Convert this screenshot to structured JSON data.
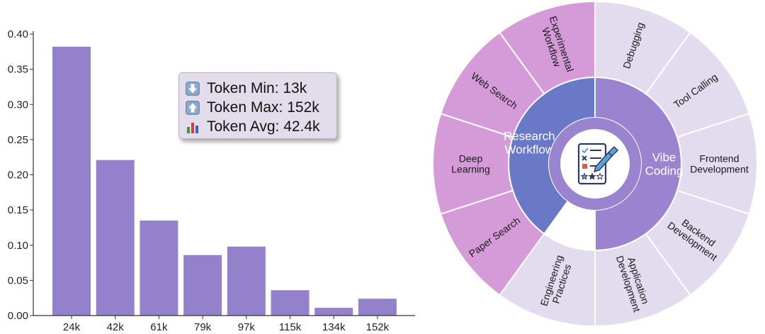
{
  "chart_data": [
    {
      "type": "bar",
      "categories": [
        "24k",
        "42k",
        "61k",
        "79k",
        "97k",
        "115k",
        "134k",
        "152k"
      ],
      "values": [
        0.382,
        0.221,
        0.135,
        0.086,
        0.098,
        0.036,
        0.011,
        0.024
      ],
      "ylim": [
        0,
        0.4
      ],
      "yticks": [
        "0.00",
        "0.05",
        "0.10",
        "0.15",
        "0.20",
        "0.25",
        "0.30",
        "0.35",
        "0.40"
      ],
      "grid": false,
      "bar_color": "#9381cb",
      "stats": [
        {
          "icon": "arrow-down-icon",
          "label": "Token Min: 13k"
        },
        {
          "icon": "arrow-up-icon",
          "label": "Token Max: 152k"
        },
        {
          "icon": "bar-chart-icon",
          "label": "Token Avg: 42.4k"
        }
      ]
    },
    {
      "type": "sunburst",
      "center_icon": "checklist-pencil-icon",
      "inner": [
        {
          "name": "Research Workflow",
          "lines": [
            "Research",
            "Workflow"
          ],
          "color": "#6a78c8",
          "share": 4
        },
        {
          "name": "Vibe Coding",
          "lines": [
            "Vibe",
            "Coding"
          ],
          "color": "#9b84cf",
          "share": 5
        }
      ],
      "outer": [
        {
          "parent": "Research Workflow",
          "lines": [
            "Paper Search"
          ],
          "color": "#d59bd9"
        },
        {
          "parent": "Research Workflow",
          "lines": [
            "Deep",
            "Learning"
          ],
          "color": "#d59bd9"
        },
        {
          "parent": "Research Workflow",
          "lines": [
            "Web Search"
          ],
          "color": "#d59bd9"
        },
        {
          "parent": "Research Workflow",
          "lines": [
            "Experimental",
            "Workflow"
          ],
          "color": "#d59bd9"
        },
        {
          "parent": "Vibe Coding",
          "lines": [
            "Debugging"
          ],
          "color": "#e3dbee"
        },
        {
          "parent": "Vibe Coding",
          "lines": [
            "Tool Calling"
          ],
          "color": "#e3dbee"
        },
        {
          "parent": "Vibe Coding",
          "lines": [
            "Frontend",
            "Development"
          ],
          "color": "#e3dbee"
        },
        {
          "parent": "Vibe Coding",
          "lines": [
            "Backend",
            "Development"
          ],
          "color": "#e3dbee"
        },
        {
          "parent": "Vibe Coding",
          "lines": [
            "Application",
            "Development"
          ],
          "color": "#e3dbee"
        },
        {
          "parent": "Vibe Coding",
          "lines": [
            "Engineering",
            "Practices"
          ],
          "color": "#e3dbee"
        }
      ]
    }
  ]
}
